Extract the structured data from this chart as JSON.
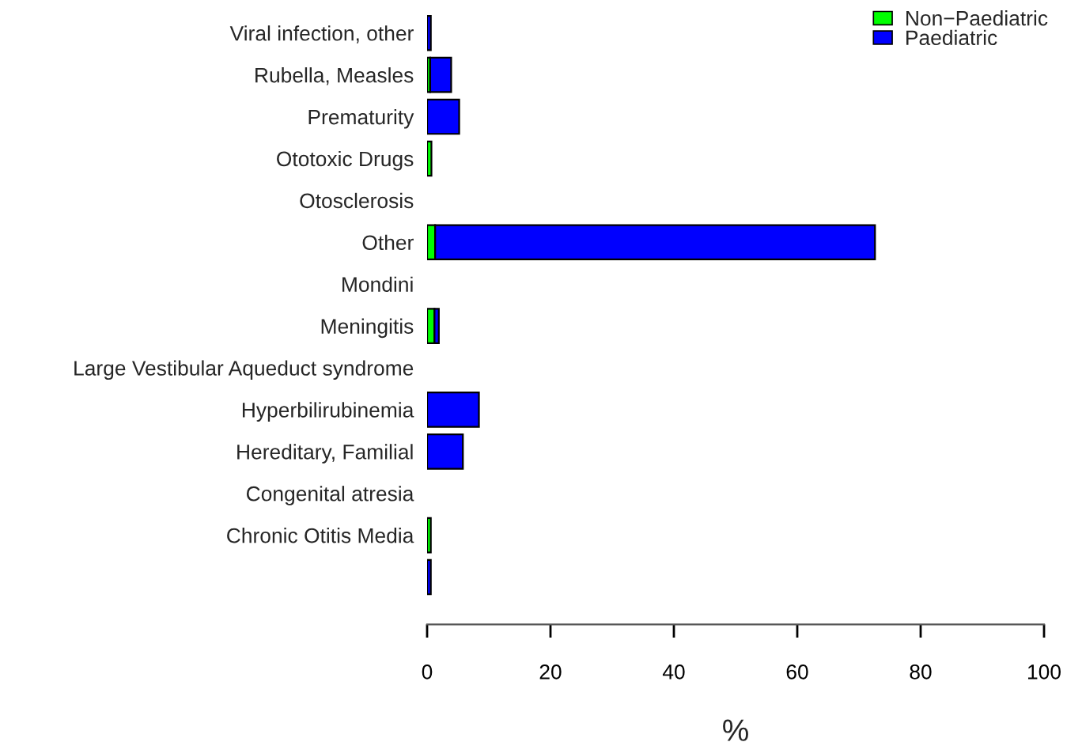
{
  "chart_data": {
    "type": "bar",
    "orientation": "horizontal",
    "stacked": true,
    "xlabel": "%",
    "categories": [
      "Viral infection, other",
      "Rubella, Measles",
      "Prematurity",
      "Ototoxic Drugs",
      "Otosclerosis",
      "Other",
      "Mondini",
      "Meningitis",
      "Large Vestibular Aqueduct syndrome",
      "Hyperbilirubinemia",
      "Hereditary, Familial",
      "Congenital atresia",
      "Chronic Otitis Media",
      null
    ],
    "series": [
      {
        "name": "Non−Paediatric",
        "color": "#00ff00",
        "values": [
          0,
          0.5,
          0,
          0.7,
          0,
          1.3,
          0,
          1.2,
          0,
          0,
          0,
          0,
          0.6,
          0
        ]
      },
      {
        "name": "Paediatric",
        "color": "#0000ff",
        "values": [
          0.6,
          3.4,
          5.2,
          0,
          0,
          71.3,
          0,
          0.7,
          0,
          8.4,
          5.8,
          0,
          0,
          0.6
        ]
      }
    ],
    "xlim": [
      0,
      100
    ],
    "xticks": [
      0,
      20,
      40,
      60,
      80,
      100
    ],
    "grid": false,
    "legend": "top right"
  }
}
